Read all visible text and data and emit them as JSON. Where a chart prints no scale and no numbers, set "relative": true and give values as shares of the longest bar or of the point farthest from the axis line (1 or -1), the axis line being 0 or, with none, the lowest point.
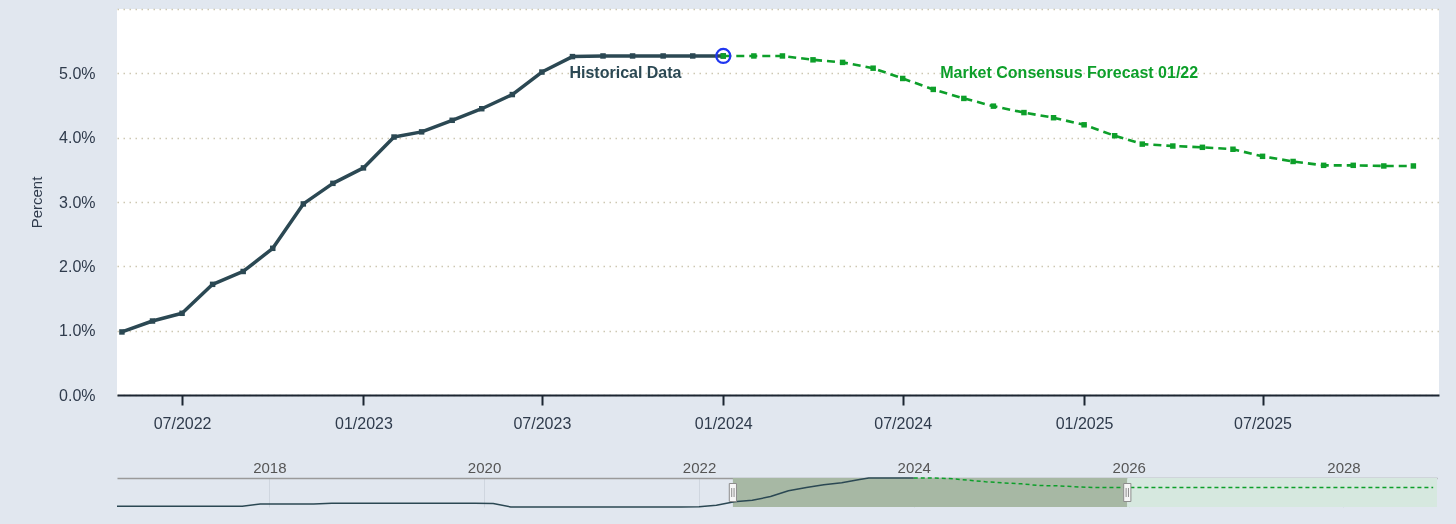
{
  "chart_data": [
    {
      "type": "line",
      "ylabel": "Percent",
      "xlim": [
        "2022-04-26",
        "2025-12-27"
      ],
      "xticks": [
        {
          "value": "2022-07",
          "label": "07/2022"
        },
        {
          "value": "2023-01",
          "label": "01/2023"
        },
        {
          "value": "2023-07",
          "label": "07/2023"
        },
        {
          "value": "2024-01",
          "label": "01/2024"
        },
        {
          "value": "2024-07",
          "label": "07/2024"
        },
        {
          "value": "2025-01",
          "label": "01/2025"
        },
        {
          "value": "2025-07",
          "label": "07/2025"
        }
      ],
      "ylim": [
        0,
        6
      ],
      "yticks": [
        {
          "value": 0,
          "label": "0.0%"
        },
        {
          "value": 1,
          "label": "1.0%"
        },
        {
          "value": 2,
          "label": "2.0%"
        },
        {
          "value": 3,
          "label": "3.0%"
        },
        {
          "value": 4,
          "label": "4.0%"
        },
        {
          "value": 5,
          "label": "5.0%"
        },
        {
          "value": 6,
          "label": null
        }
      ],
      "grid": "y",
      "marker": "square",
      "series": [
        {
          "name": "Historical Data",
          "color": "#2b4853",
          "line_style": "solid",
          "x": [
            "2022-05",
            "2022-06",
            "2022-07",
            "2022-08",
            "2022-09",
            "2022-10",
            "2022-11",
            "2022-12",
            "2023-01",
            "2023-02",
            "2023-03",
            "2023-04",
            "2023-05",
            "2023-06",
            "2023-07",
            "2023-08",
            "2023-09",
            "2023-10",
            "2023-11",
            "2023-12",
            "2024-01"
          ],
          "values": [
            0.98,
            1.15,
            1.27,
            1.72,
            1.92,
            2.28,
            2.97,
            3.29,
            3.53,
            4.01,
            4.09,
            4.27,
            4.45,
            4.67,
            5.02,
            5.26,
            5.27,
            5.27,
            5.27,
            5.27,
            5.27
          ]
        },
        {
          "name": "Market Consensus Forecast 01/22",
          "color": "#0d9f2a",
          "line_style": "dashed",
          "x": [
            "2024-01",
            "2024-02",
            "2024-03",
            "2024-04",
            "2024-05",
            "2024-06",
            "2024-07",
            "2024-08",
            "2024-09",
            "2024-10",
            "2024-11",
            "2024-12",
            "2025-01",
            "2025-02",
            "2025-03",
            "2025-04",
            "2025-05",
            "2025-06",
            "2025-07",
            "2025-08",
            "2025-09",
            "2025-10",
            "2025-11",
            "2025-12"
          ],
          "values": [
            5.27,
            5.27,
            5.27,
            5.21,
            5.17,
            5.08,
            4.92,
            4.75,
            4.61,
            4.49,
            4.39,
            4.31,
            4.2,
            4.03,
            3.9,
            3.87,
            3.85,
            3.82,
            3.71,
            3.63,
            3.57,
            3.57,
            3.56,
            3.56
          ]
        },
        {
          "type": "scatter",
          "color": "#2036f0",
          "marker": "circle",
          "x": [
            "2024-01"
          ],
          "values": [
            5.27
          ]
        }
      ]
    },
    {
      "type": "line",
      "relative": true,
      "xlim": [
        "2016-08",
        "2028-11-14"
      ],
      "xticks": [
        {
          "value": "2018",
          "label": "2018"
        },
        {
          "value": "2020",
          "label": "2020"
        },
        {
          "value": "2022",
          "label": "2022"
        },
        {
          "value": "2024",
          "label": "2024"
        },
        {
          "value": "2026",
          "label": "2026"
        },
        {
          "value": "2028",
          "label": "2028"
        }
      ],
      "grid": "x",
      "bands": [
        {
          "axis": "x",
          "from": "2022-04-26",
          "to": "2025-12-27",
          "color": "#a7b8a4"
        },
        {
          "axis": "x",
          "from": "2025-12-27",
          "to": "2028-11-14",
          "color": "#d6e8df"
        }
      ],
      "series": [
        {
          "color": "#2b4853",
          "line_style": "solid",
          "x": [
            "2016-08",
            "2017-10",
            "2017-12",
            "2018-06",
            "2018-08",
            "2019-12",
            "2020-02",
            "2020-04",
            "2021-11",
            "2022-01",
            "2022-03",
            "2022-05",
            "2022-07",
            "2022-09",
            "2022-11",
            "2023-01",
            "2023-03",
            "2023-05",
            "2023-07",
            "2023-08",
            "2024-01"
          ],
          "values": [
            0.03,
            0.03,
            0.1,
            0.1,
            0.13,
            0.13,
            0.12,
            0,
            0,
            0.01,
            0.06,
            0.18,
            0.23,
            0.36,
            0.56,
            0.67,
            0.77,
            0.84,
            0.95,
            1,
            1
          ]
        },
        {
          "color": "#0d9f2a",
          "line_style": "dashed",
          "x": [
            "2024-01",
            "2024-03",
            "2024-05",
            "2024-07",
            "2024-09",
            "2024-11",
            "2025-01",
            "2025-03",
            "2025-05",
            "2025-07",
            "2025-09",
            "2025-11",
            "2028-11"
          ],
          "values": [
            1,
            1,
            0.98,
            0.93,
            0.87,
            0.83,
            0.8,
            0.74,
            0.73,
            0.7,
            0.67,
            0.67,
            0.67
          ]
        }
      ]
    }
  ]
}
